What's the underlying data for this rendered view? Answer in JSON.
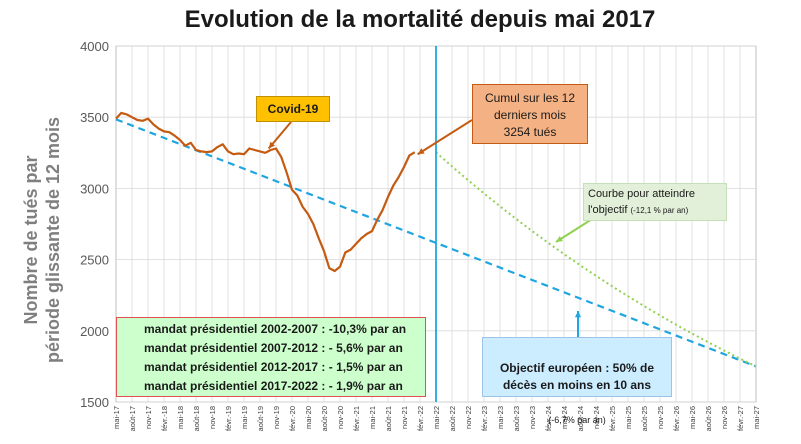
{
  "chart_data": {
    "type": "line",
    "title": "Evolution de la mortalité depuis mai 2017",
    "ylabel": "Nombre de tués par\npériode glissante de 12 mois",
    "ylim": [
      1500,
      4000
    ],
    "yticks": [
      1500,
      2000,
      2500,
      3000,
      3500,
      4000
    ],
    "grid": true,
    "x_labels": [
      "mai-17",
      "août-17",
      "nov-17",
      "févr.-18",
      "mai-18",
      "août-18",
      "nov-18",
      "févr.-19",
      "mai-19",
      "août-19",
      "nov-19",
      "févr.-20",
      "mai-20",
      "août-20",
      "nov-20",
      "févr.-21",
      "mai-21",
      "août-21",
      "nov-21",
      "févr.-22",
      "mai-22",
      "août-22",
      "nov-22",
      "févr.-23",
      "mai-23",
      "août-23",
      "nov-23",
      "févr.-24",
      "mai-24",
      "août-24",
      "nov-24",
      "févr.-25",
      "mai-25",
      "août-25",
      "nov-25",
      "févr.-26",
      "mai-26",
      "août-26",
      "nov-26",
      "févr.-27",
      "mai-27"
    ],
    "series": [
      {
        "name": "",
        "style": "solid",
        "color": "#c55a11",
        "values": [
          3490,
          3530,
          3520,
          3500,
          3480,
          3475,
          3490,
          3450,
          3420,
          3400,
          3395,
          3370,
          3340,
          3300,
          3320,
          3270,
          3260,
          3255,
          3260,
          3290,
          3310,
          3260,
          3240,
          3245,
          3240,
          3280,
          3270,
          3260,
          3250,
          3270,
          3280,
          3220,
          3110,
          2990,
          2950,
          2870,
          2820,
          2750,
          2650,
          2560,
          2440,
          2420,
          2450,
          2550,
          2570,
          2610,
          2650,
          2680,
          2700,
          2780,
          2850,
          2940,
          3020,
          3080,
          3150,
          3230,
          3254
        ]
      },
      {
        "name": "",
        "style": "dashed",
        "color": "#1fa6e0",
        "x_range": [
          "mai-17",
          "mai-27"
        ],
        "values_at_ends": [
          3485,
          1750
        ]
      },
      {
        "name": "",
        "style": "dotted",
        "color": "#92d050",
        "x_range": [
          "mai-22",
          "mai-27"
        ],
        "values_at_ends": [
          3254,
          1750
        ]
      }
    ],
    "vline": {
      "x": "mai-22",
      "color": "#1fa6e0"
    },
    "annotations": {
      "covid": "Covid-19",
      "cumul": "Cumul sur les 12\nderniers mois\n3254 tués",
      "courbe_main": "Courbe   pour atteindre l'objectif",
      "courbe_small": "(-12,1 % par an)",
      "mandats": [
        "mandat présidentiel 2002-2007 : -10,3% par an",
        "mandat présidentiel 2007-2012 : - 5,6% par an",
        "mandat présidentiel 2012-2017 : - 1,5% par an",
        "mandat présidentiel 2017-2022 : - 1,9% par an"
      ],
      "objectif_main": "Objectif européen : 50% de\ndécès en moins en 10 ans",
      "objectif_small": "(-6,7% par an)"
    },
    "colors": {
      "actual": "#c55a11",
      "target_trend": "#1fa6e0",
      "needed_curve": "#92d050",
      "grid": "#d9d9d9"
    }
  }
}
